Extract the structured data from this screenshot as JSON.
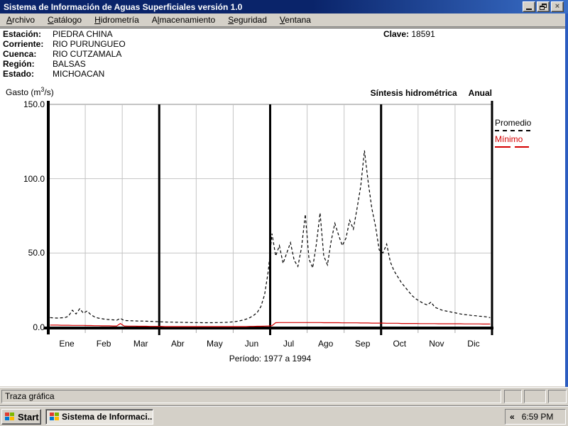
{
  "window": {
    "title": "Sistema de Información de Aguas Superficiales  versión 1.0"
  },
  "menu": {
    "items": [
      {
        "label": "Archivo",
        "accel": 0
      },
      {
        "label": "Catálogo",
        "accel": 0
      },
      {
        "label": "Hidrometría",
        "accel": 0
      },
      {
        "label": "Almacenamiento",
        "accel": 1
      },
      {
        "label": "Seguridad",
        "accel": 0
      },
      {
        "label": "Ventana",
        "accel": 0
      }
    ]
  },
  "station": {
    "fields": [
      {
        "label": "Estación:",
        "value": "PIEDRA CHINA"
      },
      {
        "label": "Corriente:",
        "value": "RIO PURUNGUEO"
      },
      {
        "label": "Cuenca:",
        "value": "RIO CUTZAMALA"
      },
      {
        "label": "Región:",
        "value": "BALSAS"
      },
      {
        "label": "Estado:",
        "value": "MICHOACAN"
      }
    ],
    "clave_label": "Clave:",
    "clave_value": "18591"
  },
  "chart_header": {
    "gasto_pre": "Gasto (m",
    "gasto_sup": "3",
    "gasto_post": "/s)",
    "title": "Síntesis hidrométrica",
    "subtitle": "Anual"
  },
  "legend": {
    "promedio": "Promedio",
    "minimo": "Mínimo"
  },
  "period_label": "Período: 1977 a 1994",
  "statusbar": {
    "text": "Traza gráfica"
  },
  "taskbar": {
    "start_label": "Start",
    "task_label": "Sistema de Informaci...",
    "tray_chevron": "«",
    "time": "6:59 PM"
  },
  "chart_data": {
    "type": "line",
    "title": "Síntesis hidrométrica Anual",
    "ylabel": "Gasto (m3/s)",
    "period": "Período: 1977 a 1994",
    "ylim": [
      0,
      150
    ],
    "grid": true,
    "legend_position": "right",
    "categories": [
      "Ene",
      "Feb",
      "Mar",
      "Abr",
      "May",
      "Jun",
      "Jul",
      "Ago",
      "Sep",
      "Oct",
      "Nov",
      "Dic"
    ],
    "quarter_dividers_after_month_index": [
      2,
      5,
      8
    ],
    "y_ticks": [
      {
        "label": "150.0",
        "value": 150
      },
      {
        "label": "100.0",
        "value": 100
      },
      {
        "label": "50.0",
        "value": 50
      },
      {
        "label": "0.0",
        "value": 0
      }
    ],
    "points_per_month": 10,
    "series": [
      {
        "name": "Promedio",
        "color": "#000000",
        "style": "dashed",
        "values": [
          6.5,
          6.3,
          6.2,
          6.4,
          6.5,
          7.5,
          11.5,
          9.0,
          12.5,
          9.5,
          11.0,
          8.5,
          7.0,
          6.2,
          5.8,
          5.4,
          5.2,
          5.0,
          4.8,
          6.0,
          4.6,
          4.5,
          4.4,
          4.3,
          4.2,
          4.2,
          4.1,
          4.0,
          3.9,
          3.8,
          3.7,
          3.6,
          3.5,
          3.5,
          3.4,
          3.4,
          3.3,
          3.3,
          3.2,
          3.2,
          3.2,
          3.1,
          3.1,
          3.1,
          3.1,
          3.2,
          3.2,
          3.3,
          3.4,
          3.6,
          3.8,
          4.2,
          4.8,
          5.5,
          6.5,
          8.0,
          10.0,
          14.0,
          22.0,
          38.0,
          63.0,
          48.0,
          55.0,
          43.0,
          50.0,
          57.0,
          45.0,
          41.0,
          54.0,
          76.0,
          46.0,
          40.0,
          56.0,
          77.0,
          48.0,
          42.0,
          58.0,
          70.0,
          62.0,
          55.0,
          60.0,
          72.0,
          66.0,
          80.0,
          95.0,
          119.0,
          98.0,
          80.0,
          68.0,
          52.0,
          50.0,
          56.0,
          44.0,
          38.0,
          34.0,
          30.0,
          27.0,
          24.0,
          21.0,
          19.0,
          17.5,
          16.0,
          15.0,
          17.0,
          13.5,
          12.5,
          11.5,
          11.0,
          10.5,
          10.0,
          9.5,
          9.0,
          8.6,
          8.3,
          8.0,
          7.8,
          7.5,
          7.3,
          7.0,
          6.5
        ]
      },
      {
        "name": "Mínimo",
        "color": "#d40000",
        "style": "solid",
        "values": [
          1.5,
          1.5,
          1.5,
          1.4,
          1.4,
          1.4,
          1.3,
          1.3,
          1.3,
          1.3,
          1.2,
          1.2,
          1.1,
          1.1,
          1.0,
          1.0,
          1.0,
          0.9,
          0.9,
          2.6,
          0.9,
          0.8,
          0.8,
          0.8,
          0.7,
          0.7,
          0.7,
          0.6,
          0.6,
          0.6,
          0.6,
          0.5,
          0.5,
          0.5,
          0.5,
          0.5,
          0.5,
          0.5,
          0.5,
          0.5,
          0.5,
          0.5,
          0.5,
          0.5,
          0.5,
          0.5,
          0.5,
          0.5,
          0.5,
          0.5,
          0.5,
          0.5,
          0.5,
          0.5,
          0.6,
          0.6,
          0.7,
          0.7,
          0.8,
          0.9,
          1.1,
          3.1,
          3.2,
          3.2,
          3.2,
          3.2,
          3.2,
          3.2,
          3.2,
          3.2,
          3.2,
          3.2,
          3.2,
          3.2,
          3.1,
          3.1,
          3.1,
          3.1,
          3.1,
          3.0,
          3.0,
          3.0,
          3.0,
          3.0,
          2.9,
          2.9,
          2.9,
          2.8,
          2.8,
          2.8,
          2.8,
          2.7,
          2.7,
          2.7,
          2.7,
          2.6,
          2.6,
          2.6,
          2.6,
          2.6,
          2.5,
          2.5,
          2.5,
          2.5,
          2.5,
          2.4,
          2.4,
          2.4,
          2.4,
          2.4,
          2.4,
          2.4,
          2.3,
          2.3,
          2.3,
          2.3,
          2.3,
          2.2,
          2.2,
          2.2
        ]
      }
    ]
  }
}
